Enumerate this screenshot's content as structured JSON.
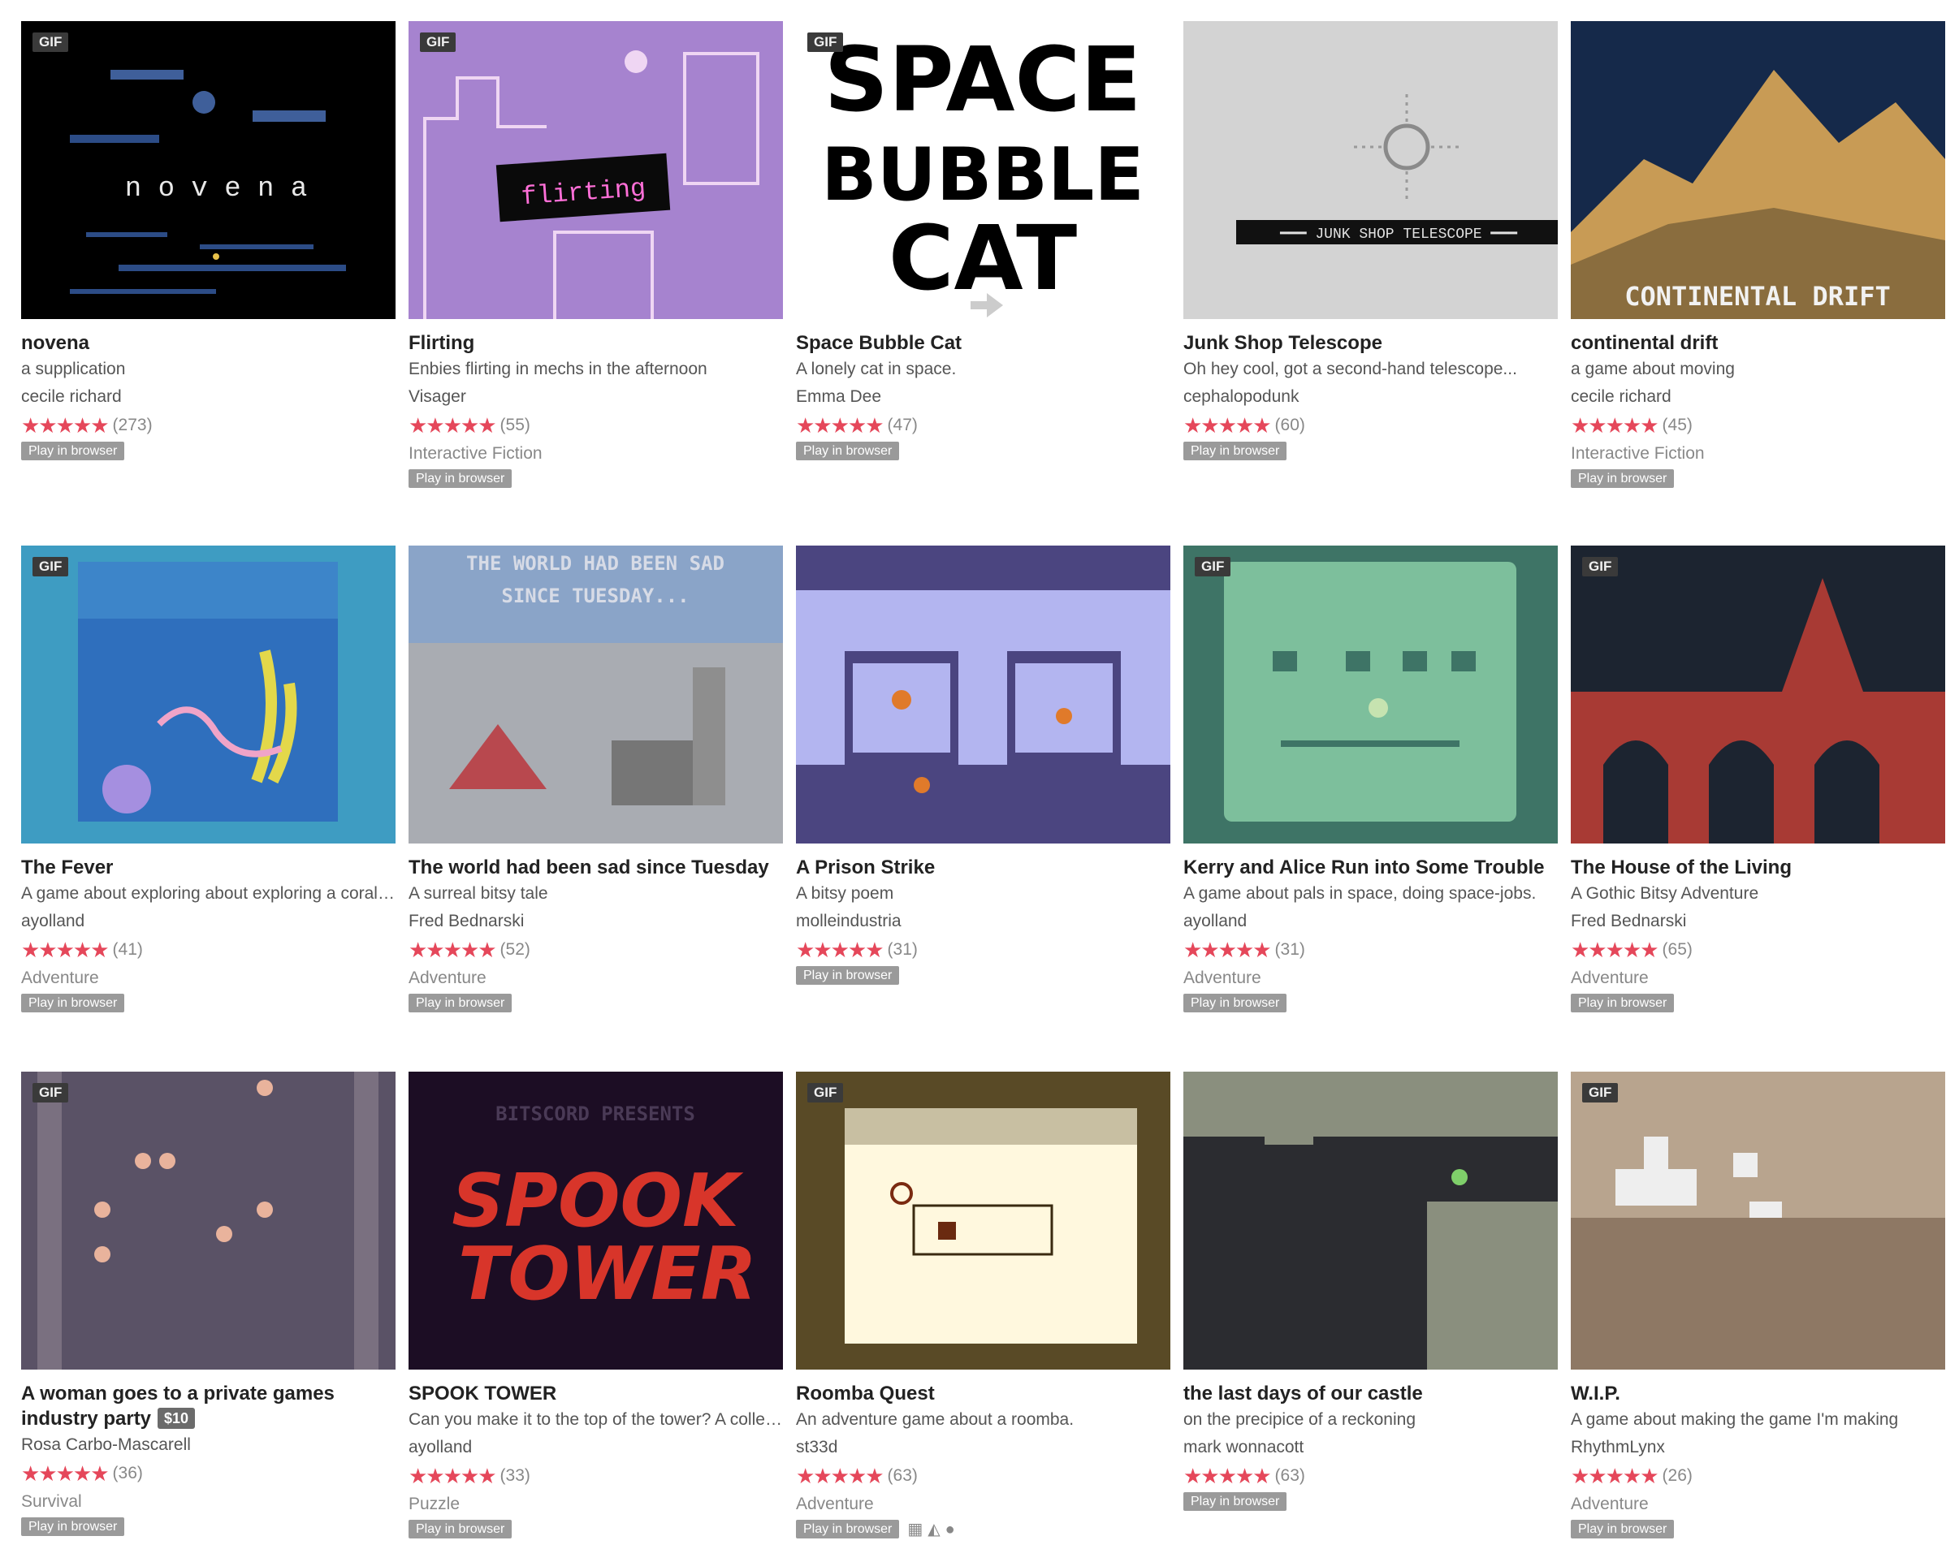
{
  "games": [
    {
      "title": "novena",
      "desc": "a supplication",
      "author": "cecile richard",
      "rating": "★★★★★",
      "count": "(273)",
      "genre": "",
      "gif": "GIF",
      "play": "Play in browser",
      "thumb": "#000000",
      "thumb_text": "n o v e n a"
    },
    {
      "title": "Flirting",
      "desc": "Enbies flirting in mechs in the afternoon",
      "author": "Visager",
      "rating": "★★★★★",
      "count": "(55)",
      "genre": "Interactive Fiction",
      "gif": "GIF",
      "play": "Play in browser",
      "thumb": "#a683cf",
      "thumb_text": "flirting"
    },
    {
      "title": "Space Bubble Cat",
      "desc": "A lonely cat in space.",
      "author": "Emma Dee",
      "rating": "★★★★★",
      "count": "(47)",
      "genre": "",
      "gif": "GIF",
      "play": "Play in browser",
      "thumb": "#ffffff",
      "thumb_text": "SPACE BUBBLE CAT"
    },
    {
      "title": "Junk Shop Telescope",
      "desc": "Oh hey cool, got a second-hand telescope...",
      "author": "cephalopodunk",
      "rating": "★★★★★",
      "count": "(60)",
      "genre": "",
      "gif": "",
      "play": "Play in browser",
      "thumb": "#d3d3d3",
      "thumb_text": "JUNK SHOP TELESCOPE"
    },
    {
      "title": "continental drift",
      "desc": "a game about moving",
      "author": "cecile richard",
      "rating": "★★★★★",
      "count": "(45)",
      "genre": "Interactive Fiction",
      "gif": "",
      "play": "Play in browser",
      "thumb": "#15294a",
      "thumb_text": "CONTINENTAL DRIFT"
    },
    {
      "title": "The Fever",
      "desc": "A game about exploring about exploring a coral reef",
      "author": "ayolland",
      "rating": "★★★★★",
      "count": "(41)",
      "genre": "Adventure",
      "gif": "GIF",
      "play": "Play in browser",
      "thumb": "#3e9cc2",
      "thumb_text": ""
    },
    {
      "title": "The world had been sad since Tuesday",
      "desc": "A surreal bitsy tale",
      "author": "Fred Bednarski",
      "rating": "★★★★★",
      "count": "(52)",
      "genre": "Adventure",
      "gif": "",
      "play": "Play in browser",
      "thumb": "#a9acb2",
      "thumb_text": "THE WORLD HAD BEEN SAD SINCE TUESDAY..."
    },
    {
      "title": "A Prison Strike",
      "desc": "A bitsy poem",
      "author": "molleindustria",
      "rating": "★★★★★",
      "count": "(31)",
      "genre": "",
      "gif": "",
      "play": "Play in browser",
      "thumb": "#b3b5f0",
      "thumb_text": ""
    },
    {
      "title": "Kerry and Alice Run into Some Trouble",
      "desc": "A game about pals in space, doing space-jobs.",
      "author": "ayolland",
      "rating": "★★★★★",
      "count": "(31)",
      "genre": "Adventure",
      "gif": "GIF",
      "play": "Play in browser",
      "thumb": "#3e7466",
      "thumb_text": ""
    },
    {
      "title": "The House of the Living",
      "desc": "A Gothic Bitsy Adventure",
      "author": "Fred Bednarski",
      "rating": "★★★★★",
      "count": "(65)",
      "genre": "Adventure",
      "gif": "GIF",
      "play": "Play in browser",
      "thumb": "#1c2430",
      "thumb_text": ""
    },
    {
      "title": "A woman goes to a private games industry party",
      "price": "$10",
      "desc": "",
      "author": "Rosa Carbo-Mascarell",
      "rating": "★★★★★",
      "count": "(36)",
      "genre": "Survival",
      "gif": "GIF",
      "play": "Play in browser",
      "thumb": "#5a5266",
      "thumb_text": ""
    },
    {
      "title": "SPOOK TOWER",
      "desc": "Can you make it to the top of the tower? A collection",
      "author": "ayolland",
      "rating": "★★★★★",
      "count": "(33)",
      "genre": "Puzzle",
      "gif": "",
      "play": "Play in browser",
      "thumb": "#1c0d24",
      "thumb_text": "BITSCORD PRESENTS"
    },
    {
      "title": "Roomba Quest",
      "desc": "An adventure game about a roomba.",
      "author": "st33d",
      "rating": "★★★★★",
      "count": "(63)",
      "genre": "Adventure",
      "gif": "GIF",
      "play": "Play in browser",
      "thumb": "#594a26",
      "thumb_text": ""
    },
    {
      "title": "the last days of our castle",
      "desc": "on the precipice of a reckoning",
      "author": "mark wonnacott",
      "rating": "★★★★★",
      "count": "(63)",
      "genre": "",
      "gif": "",
      "play": "Play in browser",
      "thumb": "#2b2c30",
      "thumb_text": ""
    },
    {
      "title": "W.I.P.",
      "desc": "A game about making the game I'm making",
      "author": "RhythmLynx",
      "rating": "★★★★★",
      "count": "(26)",
      "genre": "Adventure",
      "gif": "GIF",
      "play": "Play in browser",
      "thumb": "#8e7864",
      "thumb_text": ""
    }
  ],
  "platform_icons": [
    "windows-icon",
    "linux-icon",
    "apple-icon"
  ]
}
